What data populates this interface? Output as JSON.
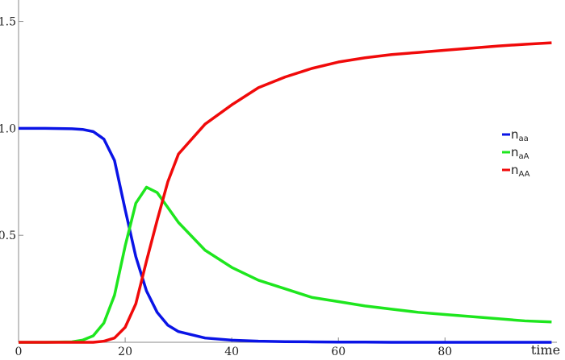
{
  "chart_data": {
    "type": "line",
    "x_label": "time",
    "x": [
      0,
      5,
      10,
      12,
      14,
      16,
      18,
      20,
      22,
      24,
      26,
      28,
      30,
      35,
      40,
      45,
      50,
      55,
      60,
      65,
      70,
      75,
      80,
      85,
      90,
      95,
      100
    ],
    "series": [
      {
        "name": "naa",
        "color": "#0a14e6",
        "values": [
          1,
          1,
          0.998,
          0.995,
          0.985,
          0.95,
          0.85,
          0.62,
          0.4,
          0.24,
          0.14,
          0.08,
          0.05,
          0.02,
          0.01,
          0.005,
          0.003,
          0.002,
          0.001,
          0.001,
          0,
          0,
          0,
          0,
          0,
          0,
          0
        ]
      },
      {
        "name": "naA",
        "color": "#1ee61e",
        "values": [
          0,
          0,
          0.002,
          0.01,
          0.03,
          0.09,
          0.22,
          0.45,
          0.65,
          0.725,
          0.7,
          0.63,
          0.56,
          0.43,
          0.35,
          0.29,
          0.25,
          0.21,
          0.19,
          0.17,
          0.155,
          0.14,
          0.13,
          0.12,
          0.11,
          0.1,
          0.095
        ]
      },
      {
        "name": "nAA",
        "color": "#f00a0a",
        "values": [
          0,
          0,
          0,
          0,
          0,
          0.005,
          0.02,
          0.07,
          0.18,
          0.38,
          0.57,
          0.75,
          0.88,
          1.02,
          1.11,
          1.19,
          1.24,
          1.28,
          1.31,
          1.33,
          1.345,
          1.355,
          1.365,
          1.375,
          1.385,
          1.393,
          1.4
        ]
      }
    ],
    "xlim": [
      0,
      101
    ],
    "ylim": [
      0,
      1.6
    ],
    "xticks": [
      0,
      20,
      40,
      60,
      80
    ],
    "yticks": [
      0.5,
      {
        "value": 1.0,
        "label": "1.0"
      },
      1.5
    ],
    "legend": "right"
  }
}
